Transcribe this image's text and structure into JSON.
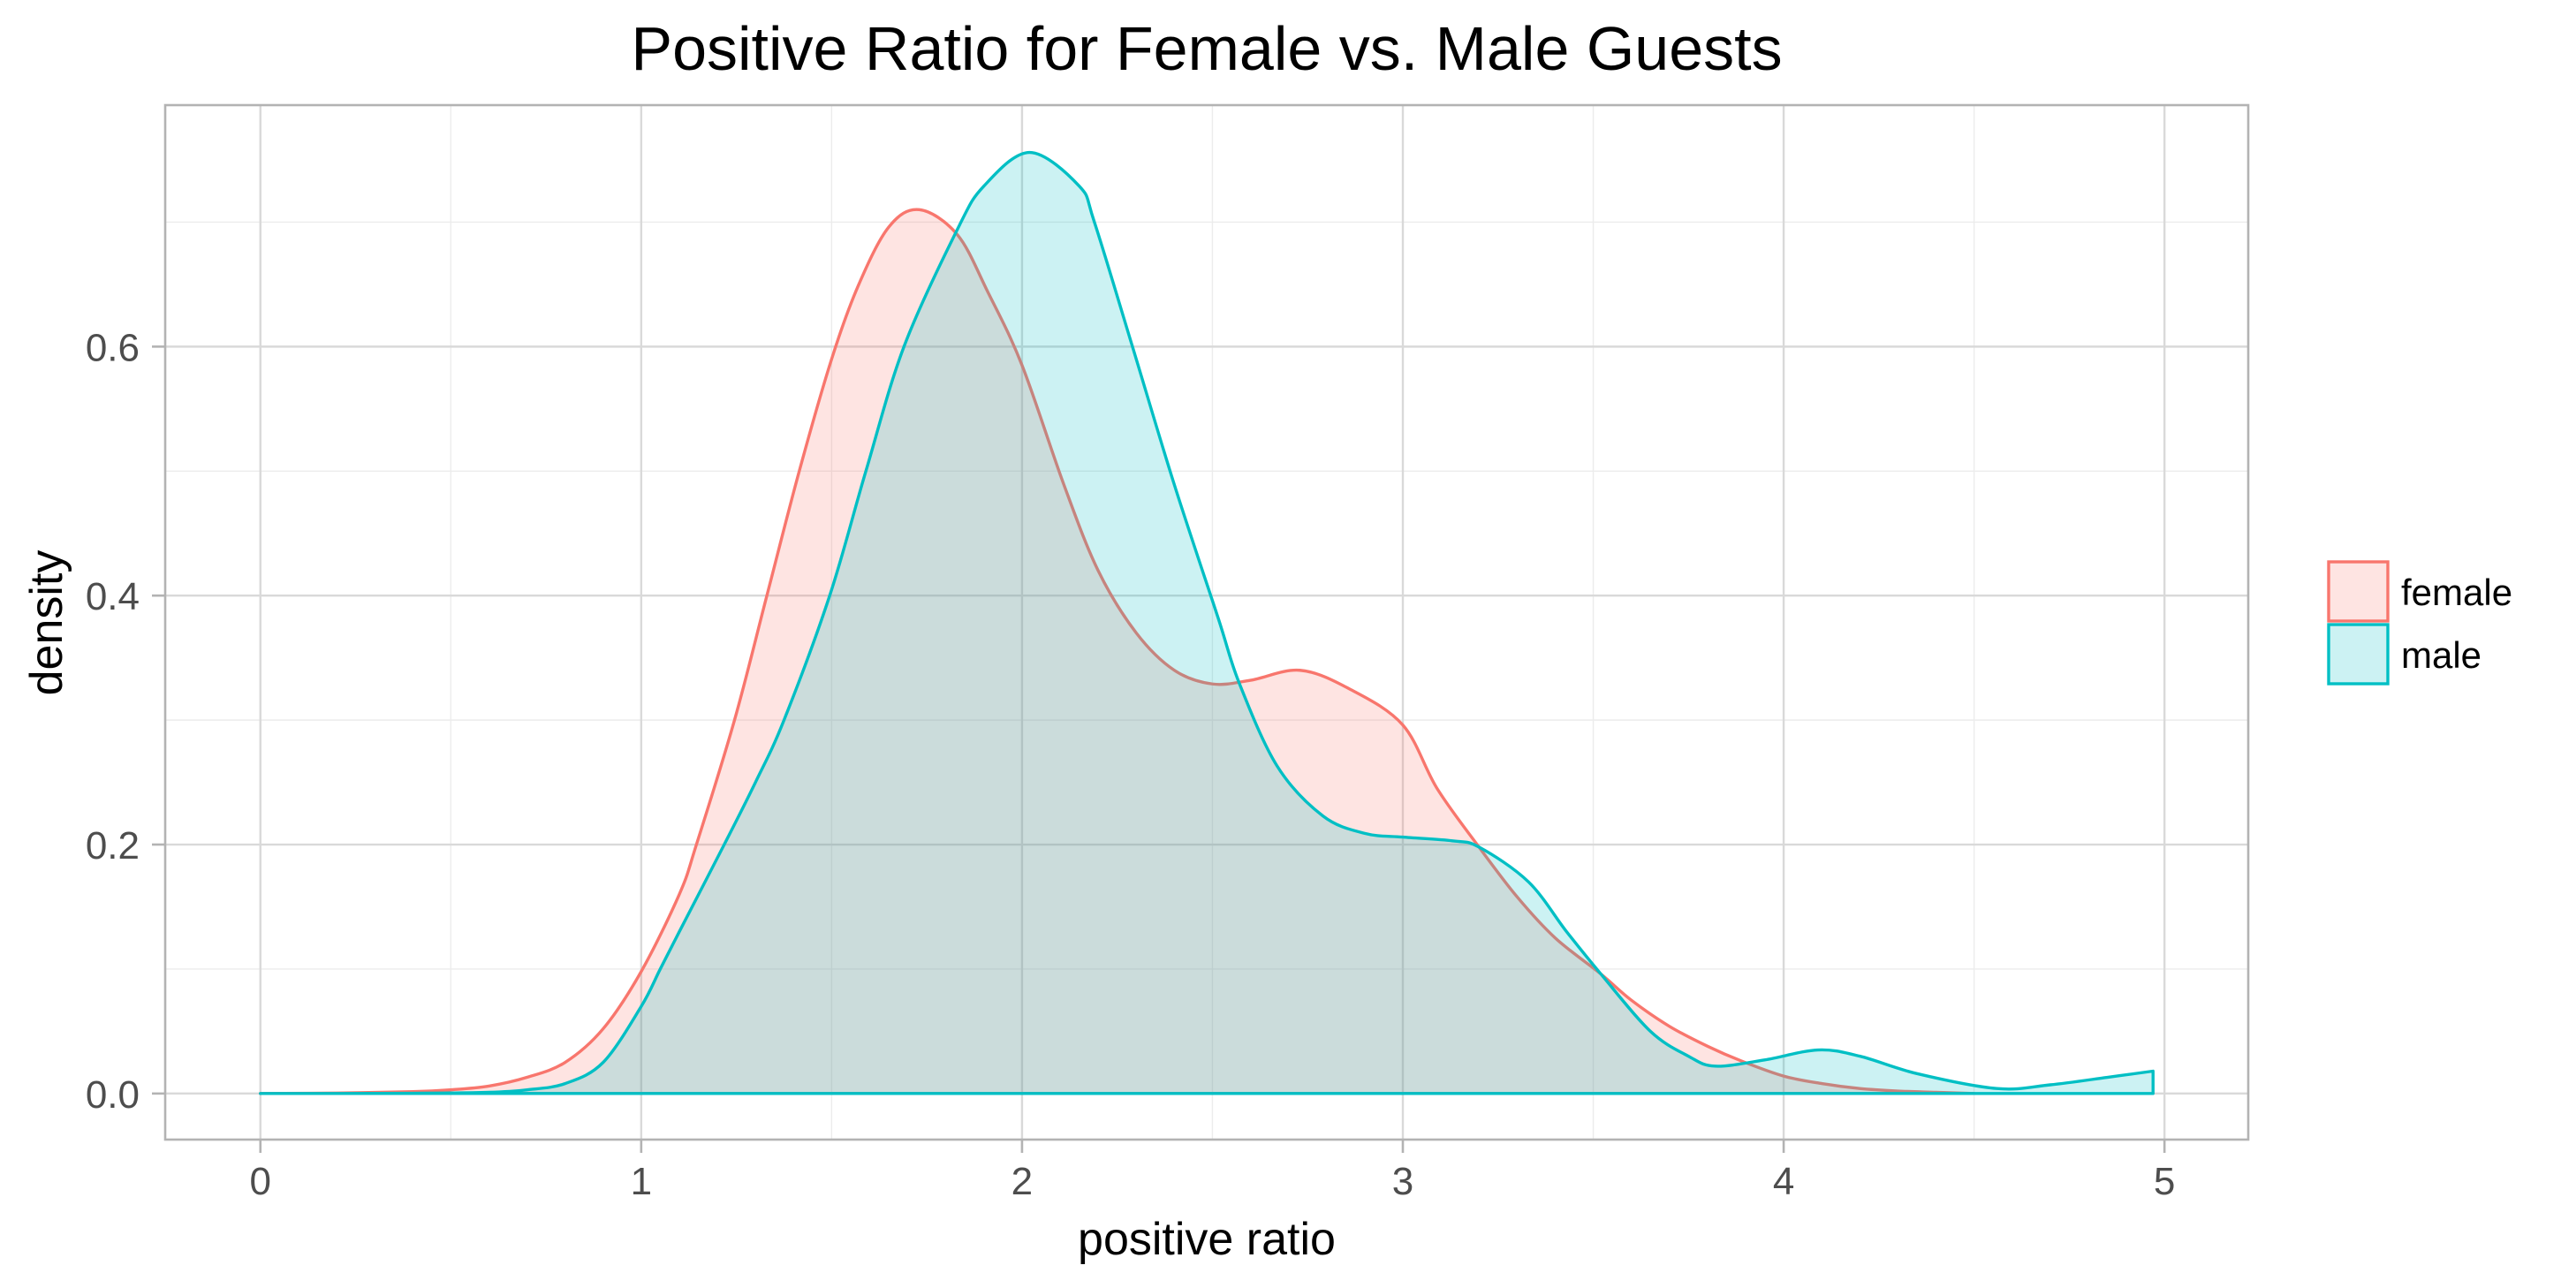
{
  "chart_data": {
    "type": "area",
    "subtype": "density",
    "title": "Positive Ratio for Female vs. Male Guests",
    "xlabel": "positive ratio",
    "ylabel": "density",
    "xlim": [
      -0.25,
      5.22
    ],
    "ylim": [
      -0.037,
      0.794
    ],
    "x_ticks": [
      0,
      1,
      2,
      3,
      4,
      5
    ],
    "x_tick_labels": [
      "0",
      "1",
      "2",
      "3",
      "4",
      "5"
    ],
    "x_minor_ticks": [
      0.5,
      1.5,
      2.5,
      3.5,
      4.5
    ],
    "y_ticks": [
      0.0,
      0.2,
      0.4,
      0.6
    ],
    "y_tick_labels": [
      "0.0",
      "0.2",
      "0.4",
      "0.6"
    ],
    "y_minor_ticks": [
      0.1,
      0.3,
      0.5,
      0.7
    ],
    "grid": true,
    "legend_position": "right",
    "series": [
      {
        "name": "female",
        "color": "#F8766D",
        "fill": "#F8766D",
        "fill_alpha": 0.2,
        "x": [
          0,
          0.2,
          0.4,
          0.5,
          0.6,
          0.7,
          0.8,
          0.9,
          1.0,
          1.1,
          1.145,
          1.245,
          1.33,
          1.415,
          1.5,
          1.57,
          1.65,
          1.73,
          1.83,
          1.91,
          2.0,
          2.11,
          2.2,
          2.3,
          2.4,
          2.5,
          2.6,
          2.73,
          2.86,
          3.0,
          3.09,
          3.2,
          3.3,
          3.4,
          3.52,
          3.6,
          3.7,
          3.8,
          3.89,
          4.0,
          4.1,
          4.2,
          4.3,
          4.4,
          4.5
        ],
        "y": [
          0,
          0.0004,
          0.0015,
          0.003,
          0.006,
          0.013,
          0.025,
          0.052,
          0.098,
          0.16,
          0.2,
          0.3,
          0.4,
          0.5,
          0.59,
          0.649,
          0.696,
          0.71,
          0.69,
          0.644,
          0.585,
          0.489,
          0.42,
          0.37,
          0.34,
          0.329,
          0.332,
          0.34,
          0.325,
          0.296,
          0.245,
          0.198,
          0.158,
          0.125,
          0.096,
          0.075,
          0.054,
          0.038,
          0.026,
          0.014,
          0.008,
          0.004,
          0.002,
          0.001,
          0
        ]
      },
      {
        "name": "male",
        "color": "#00BFC4",
        "fill": "#00BFC4",
        "fill_alpha": 0.2,
        "x": [
          0,
          0.4,
          0.6,
          0.7,
          0.8,
          0.9,
          1.0,
          1.05,
          1.1,
          1.218,
          1.3,
          1.375,
          1.495,
          1.59,
          1.69,
          1.83,
          1.9,
          2.02,
          2.15,
          2.19,
          2.29,
          2.4,
          2.515,
          2.57,
          2.67,
          2.79,
          2.9,
          3.0,
          3.13,
          3.2,
          3.33,
          3.43,
          3.52,
          3.65,
          3.75,
          3.82,
          3.95,
          4.09,
          4.2,
          4.35,
          4.56,
          4.7,
          4.85,
          4.97
        ],
        "y": [
          0,
          0.0002,
          0.001,
          0.003,
          0.008,
          0.025,
          0.07,
          0.1,
          0.13,
          0.2,
          0.25,
          0.3,
          0.4,
          0.5,
          0.6,
          0.694,
          0.729,
          0.756,
          0.729,
          0.7,
          0.6,
          0.489,
          0.382,
          0.33,
          0.263,
          0.223,
          0.209,
          0.206,
          0.203,
          0.198,
          0.17,
          0.13,
          0.096,
          0.05,
          0.03,
          0.022,
          0.027,
          0.035,
          0.03,
          0.016,
          0.004,
          0.007,
          0.013,
          0.018
        ]
      }
    ]
  }
}
